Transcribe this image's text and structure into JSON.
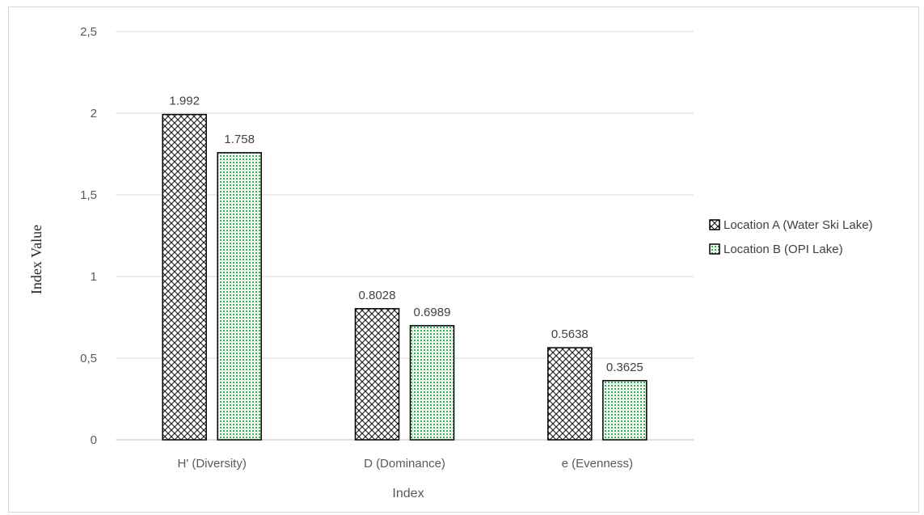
{
  "chart_data": {
    "type": "bar",
    "title": "",
    "xlabel": "Index",
    "ylabel": "Index Value",
    "categories": [
      "H' (Diversity)",
      "D (Dominance)",
      "e (Evenness)"
    ],
    "series": [
      {
        "name": "Location A (Water Ski Lake)",
        "values": [
          1.992,
          0.8028,
          0.5638
        ],
        "labels": [
          "1.992",
          "0.8028",
          "0.5638"
        ],
        "pattern": "crosshatch",
        "color": "#000000"
      },
      {
        "name": "Location B (OPI Lake)",
        "values": [
          1.758,
          0.6989,
          0.3625
        ],
        "labels": [
          "1.758",
          "0.6989",
          "0.3625"
        ],
        "pattern": "green-dots",
        "color": "#33b050"
      }
    ],
    "ylim": [
      0,
      2.5
    ],
    "yticks": [
      0,
      0.5,
      1,
      1.5,
      2,
      2.5
    ],
    "ytick_labels": [
      "0",
      "0,5",
      "1",
      "1,5",
      "2",
      "2,5"
    ],
    "grid": true,
    "legend_position": "right"
  }
}
